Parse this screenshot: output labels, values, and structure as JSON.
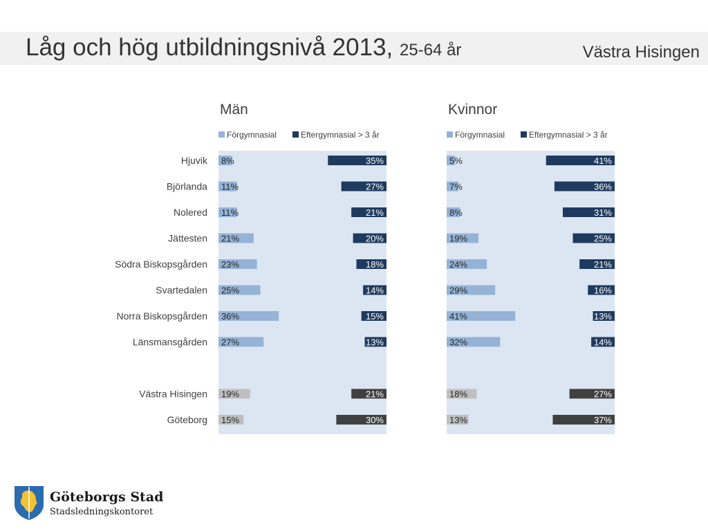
{
  "header": {
    "title": "Låg och hög utbildningsnivå 2013,",
    "subtitle": "25-64 år",
    "region": "Västra Hisingen"
  },
  "footer": {
    "org_name": "Göteborgs Stad",
    "department": "Stadsledningskontoret"
  },
  "colors": {
    "panel_bg": "#dce6f2",
    "low_area": "#95b3d7",
    "high_area": "#1f3a5f",
    "low_total": "#bfbfbf",
    "high_total": "#404040"
  },
  "chart_data": [
    {
      "type": "bar",
      "title": "Män",
      "categories": [
        "Hjuvik",
        "Björlanda",
        "Nolered",
        "Jättesten",
        "Södra Biskopsgården",
        "Svartedalen",
        "Norra Biskopsgården",
        "Länsmansgården",
        "",
        "Västra Hisingen",
        "Göteborg"
      ],
      "series": [
        {
          "name": "Förgymnasial",
          "values": [
            8,
            11,
            11,
            21,
            23,
            25,
            36,
            27,
            null,
            19,
            15
          ],
          "labels": [
            "8%",
            "11%",
            "11%",
            "21%",
            "23%",
            "25%",
            "36%",
            "27%",
            "",
            "19%",
            "15%"
          ]
        },
        {
          "name": "Eftergymnasial > 3 år",
          "values": [
            35,
            27,
            21,
            20,
            18,
            14,
            15,
            13,
            null,
            21,
            30
          ],
          "labels": [
            "35%",
            "27%",
            "21%",
            "20%",
            "18%",
            "14%",
            "15%",
            "13%",
            "",
            "21%",
            "30%"
          ]
        }
      ]
    },
    {
      "type": "bar",
      "title": "Kvinnor",
      "categories": [
        "Hjuvik",
        "Björlanda",
        "Nolered",
        "Jättesten",
        "Södra Biskopsgården",
        "Svartedalen",
        "Norra Biskopsgården",
        "Länsmansgården",
        "",
        "Västra Hisingen",
        "Göteborg"
      ],
      "series": [
        {
          "name": "Förgymnasial",
          "values": [
            5,
            7,
            8,
            19,
            24,
            29,
            41,
            32,
            null,
            18,
            13
          ],
          "labels": [
            "5%",
            "7%",
            "8%",
            "19%",
            "24%",
            "29%",
            "41%",
            "32%",
            "",
            "18%",
            "13%"
          ]
        },
        {
          "name": "Eftergymnasial > 3 år",
          "values": [
            41,
            36,
            31,
            25,
            21,
            16,
            13,
            14,
            null,
            27,
            37
          ],
          "labels": [
            "41%",
            "36%",
            "31%",
            "25%",
            "21%",
            "16%",
            "13%",
            "14%",
            "",
            "27%",
            "37%"
          ]
        }
      ]
    }
  ]
}
